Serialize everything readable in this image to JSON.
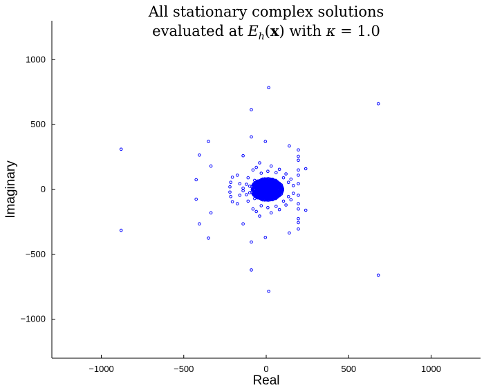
{
  "chart_data": {
    "type": "scatter",
    "title_line1": "All stationary complex solutions",
    "title_line2": "evaluated at E_h(x) with κ = 1.0",
    "xlabel": "Real",
    "ylabel": "Imaginary",
    "xlim": [
      -1300,
      1300
    ],
    "ylim": [
      -1300,
      1300
    ],
    "xticks": [
      -1000,
      -500,
      0,
      500,
      1000
    ],
    "yticks": [
      -1000,
      -500,
      0,
      500,
      1000
    ],
    "xtick_labels": [
      "−1000",
      "−500",
      "0",
      "500",
      "1000"
    ],
    "ytick_labels": [
      "−1000",
      "−500",
      "0",
      "500",
      "1000"
    ],
    "grid": false,
    "marker_color": "#0000ff",
    "series": [
      {
        "marker": "circle",
        "points": [
          [
            680,
            660
          ],
          [
            680,
            -660
          ],
          [
            -880,
            310
          ],
          [
            -880,
            -315
          ],
          [
            15,
            785
          ],
          [
            15,
            -785
          ],
          [
            -90,
            615
          ],
          [
            -90,
            -620
          ],
          [
            -90,
            405
          ],
          [
            -90,
            -405
          ],
          [
            -350,
            370
          ],
          [
            -350,
            -375
          ],
          [
            -405,
            265
          ],
          [
            -405,
            -265
          ],
          [
            -335,
            180
          ],
          [
            -335,
            -180
          ],
          [
            -425,
            75
          ],
          [
            -425,
            -75
          ],
          [
            -5,
            370
          ],
          [
            -5,
            -370
          ],
          [
            -140,
            260
          ],
          [
            -140,
            -265
          ],
          [
            140,
            335
          ],
          [
            140,
            -335
          ],
          [
            195,
            305
          ],
          [
            195,
            -305
          ],
          [
            195,
            255
          ],
          [
            195,
            -255
          ],
          [
            240,
            160
          ],
          [
            240,
            -160
          ],
          [
            195,
            225
          ],
          [
            195,
            -225
          ],
          [
            195,
            150
          ],
          [
            195,
            -150
          ],
          [
            195,
            110
          ],
          [
            195,
            -110
          ],
          [
            195,
            45
          ],
          [
            195,
            -45
          ],
          [
            -205,
            95
          ],
          [
            -205,
            -95
          ],
          [
            -215,
            55
          ],
          [
            -215,
            -55
          ],
          [
            -220,
            20
          ],
          [
            -220,
            -20
          ],
          [
            -175,
            110
          ],
          [
            -175,
            -110
          ],
          [
            -160,
            45
          ],
          [
            -160,
            -45
          ],
          [
            -140,
            10
          ],
          [
            -140,
            -10
          ],
          [
            -110,
            90
          ],
          [
            -110,
            -90
          ],
          [
            -80,
            150
          ],
          [
            -80,
            -150
          ],
          [
            -40,
            205
          ],
          [
            -40,
            -205
          ],
          [
            30,
            180
          ],
          [
            30,
            -180
          ],
          [
            80,
            155
          ],
          [
            80,
            -155
          ],
          [
            120,
            120
          ],
          [
            120,
            -120
          ],
          [
            150,
            80
          ],
          [
            150,
            -80
          ],
          [
            165,
            30
          ],
          [
            165,
            -30
          ],
          [
            -60,
            170
          ],
          [
            -60,
            -170
          ],
          [
            60,
            130
          ],
          [
            60,
            -130
          ],
          [
            -120,
            40
          ],
          [
            -120,
            -40
          ],
          [
            -100,
            25
          ],
          [
            -100,
            -25
          ],
          [
            105,
            90
          ],
          [
            105,
            -90
          ],
          [
            135,
            55
          ],
          [
            135,
            -55
          ],
          [
            -30,
            125
          ],
          [
            -30,
            -125
          ],
          [
            10,
            140
          ],
          [
            10,
            -140
          ],
          [
            -70,
            70
          ],
          [
            -70,
            -70
          ],
          [
            90,
            20
          ],
          [
            90,
            -20
          ]
        ]
      }
    ]
  }
}
